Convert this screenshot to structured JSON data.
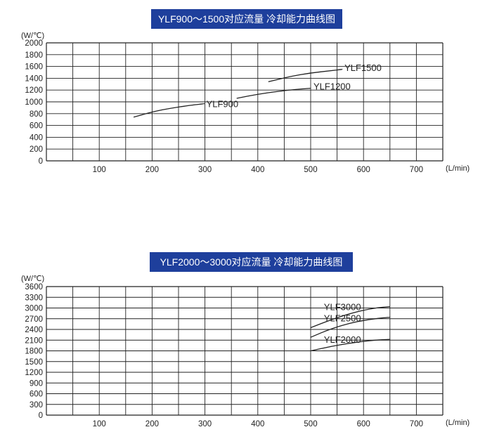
{
  "colors": {
    "title_bg": "#1e3f9c",
    "title_text": "#ffffff",
    "grid": "#222222",
    "curve": "#222222",
    "text": "#222222"
  },
  "chart_data": [
    {
      "type": "line",
      "title": "YLF900～1500对应流量 冷却能力曲线图",
      "ylabel": "(W/℃)",
      "xlabel": "(L/min)",
      "xlim": [
        0,
        750
      ],
      "ylim": [
        0,
        2000
      ],
      "x_ticks": [
        100,
        200,
        300,
        400,
        500,
        600,
        700
      ],
      "y_ticks": [
        0,
        200,
        400,
        600,
        800,
        1000,
        1200,
        1400,
        1600,
        1800,
        2000
      ],
      "grid": true,
      "series": [
        {
          "name": "YLF900",
          "x": [
            165,
            200,
            240,
            280,
            300
          ],
          "y": [
            740,
            830,
            900,
            950,
            970
          ]
        },
        {
          "name": "YLF1200",
          "x": [
            360,
            400,
            440,
            470,
            500
          ],
          "y": [
            1060,
            1130,
            1180,
            1210,
            1230
          ]
        },
        {
          "name": "YLF1500",
          "x": [
            420,
            460,
            500,
            540,
            560
          ],
          "y": [
            1340,
            1430,
            1490,
            1530,
            1550
          ]
        }
      ]
    },
    {
      "type": "line",
      "title": "YLF2000～3000对应流量 冷却能力曲线图",
      "ylabel": "(W/℃)",
      "xlabel": "(L/min)",
      "xlim": [
        0,
        750
      ],
      "ylim": [
        0,
        3600
      ],
      "x_ticks": [
        100,
        200,
        300,
        400,
        500,
        600,
        700
      ],
      "y_ticks": [
        0,
        300,
        600,
        900,
        1200,
        1500,
        1800,
        2100,
        2400,
        2700,
        3000,
        3300,
        3600
      ],
      "grid": true,
      "series": [
        {
          "name": "YLF3000",
          "x": [
            500,
            540,
            580,
            620,
            650
          ],
          "y": [
            2450,
            2680,
            2870,
            3000,
            3040
          ]
        },
        {
          "name": "YLF2500",
          "x": [
            500,
            540,
            580,
            620,
            650
          ],
          "y": [
            2180,
            2430,
            2600,
            2700,
            2740
          ]
        },
        {
          "name": "YLF2000",
          "x": [
            500,
            540,
            580,
            620,
            650
          ],
          "y": [
            1800,
            1930,
            2030,
            2100,
            2120
          ]
        }
      ]
    }
  ]
}
